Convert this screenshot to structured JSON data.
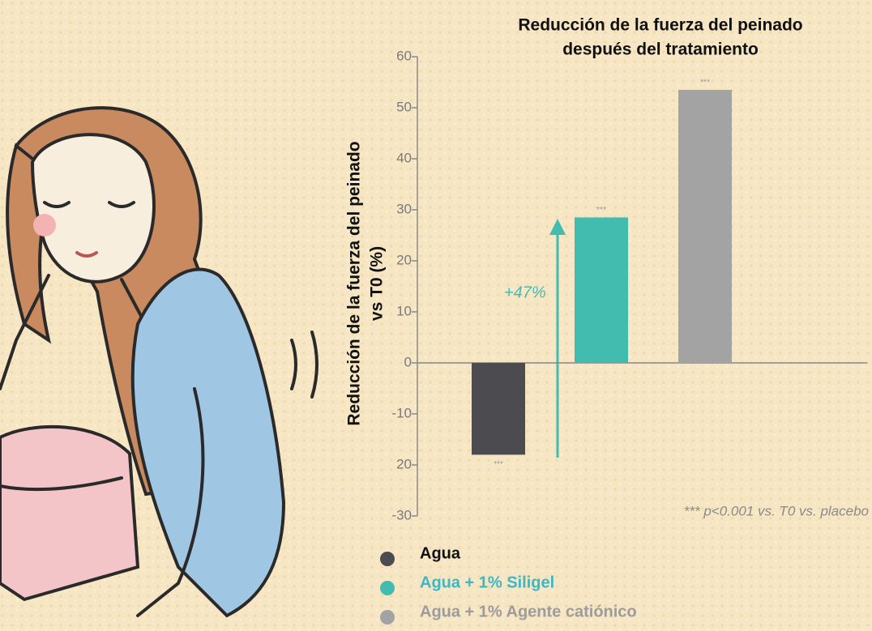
{
  "chart_data": {
    "type": "bar",
    "title": [
      "Reducción de la fuerza del peinado",
      "después del tratamiento"
    ],
    "y_label": [
      "Reducción de la  fuerza del peinado",
      "vs T0 (%)"
    ],
    "categories": [
      "Agua",
      "Agua + 1% Siligel",
      "Agua + 1% Agente catiónico"
    ],
    "values": [
      -18,
      28.5,
      53.5
    ],
    "colors": [
      "#4b4b50",
      "#43bcb0",
      "#a3a3a3"
    ],
    "label_colors": [
      "#111111",
      "#3db6c6",
      "#9c9c9c"
    ],
    "bar_annotations": [
      "***",
      "***",
      "***"
    ],
    "annotations": [
      "+47%",
      "*** p<0.001 vs. T0 vs. placebo"
    ],
    "ylim": [
      -30,
      60
    ],
    "yticks": [
      60,
      50,
      40,
      30,
      20,
      10,
      0,
      -10,
      {
        "value": -20,
        "label": "20"
      },
      -30
    ]
  }
}
